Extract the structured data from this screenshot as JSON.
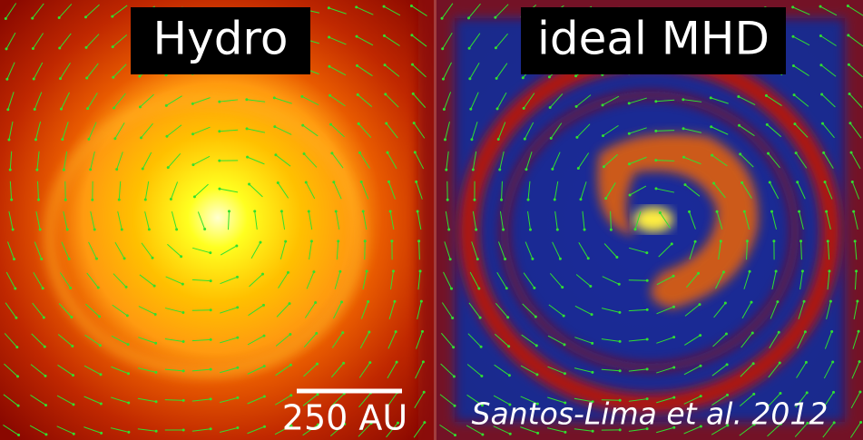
{
  "panels": [
    {
      "title": "Hydro"
    },
    {
      "title": "ideal MHD"
    }
  ],
  "scale_bar": {
    "label": "250 AU"
  },
  "credit": "Santos-Lima et al. 2012"
}
